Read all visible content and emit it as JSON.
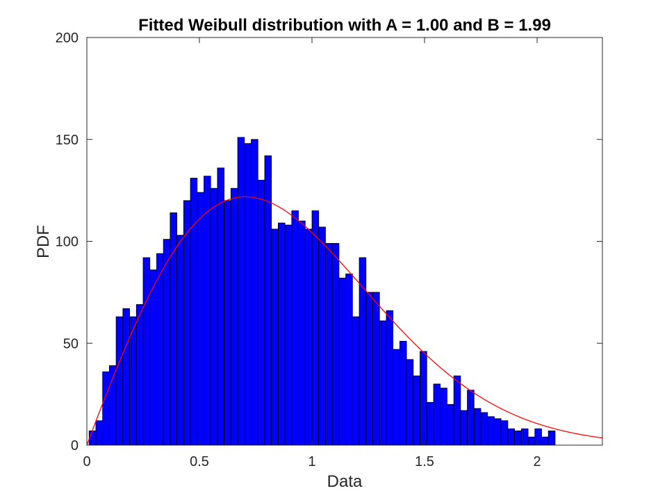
{
  "chart_data": {
    "type": "bar",
    "title": "Fitted Weibull distribution with A = 1.00 and B = 1.99",
    "xlabel": "Data",
    "ylabel": "PDF",
    "xlim": [
      0,
      2.29
    ],
    "ylim": [
      0,
      200
    ],
    "xticks": [
      "0",
      "0.5",
      "1",
      "1.5",
      "2"
    ],
    "xtick_values": [
      0,
      0.5,
      1,
      1.5,
      2
    ],
    "yticks": [
      "0",
      "50",
      "100",
      "150",
      "200"
    ],
    "ytick_values": [
      0,
      50,
      100,
      150,
      200
    ],
    "grid": false,
    "legend": "none",
    "histogram": {
      "name": "",
      "color": "#0000ff",
      "edge_color": "#000000",
      "bin_start": 0.01,
      "bin_width": 0.03,
      "values": [
        7,
        12,
        36,
        39,
        63,
        67,
        63,
        69,
        92,
        86,
        94,
        101,
        114,
        103,
        120,
        131,
        124,
        132,
        126,
        136,
        120,
        126,
        151,
        148,
        150,
        130,
        142,
        106,
        109,
        108,
        115,
        110,
        106,
        115,
        107,
        99,
        99,
        82,
        84,
        63,
        92,
        75,
        75,
        61,
        66,
        47,
        51,
        42,
        34,
        46,
        21,
        30,
        28,
        20,
        34,
        17,
        27,
        18,
        16,
        14,
        13,
        12,
        8,
        7,
        8,
        4,
        8,
        4,
        7
      ]
    },
    "fit": {
      "name": "",
      "color": "#ff0000",
      "distribution": "weibull",
      "A": 1.0,
      "B": 1.99,
      "scale": 142.5
    }
  }
}
